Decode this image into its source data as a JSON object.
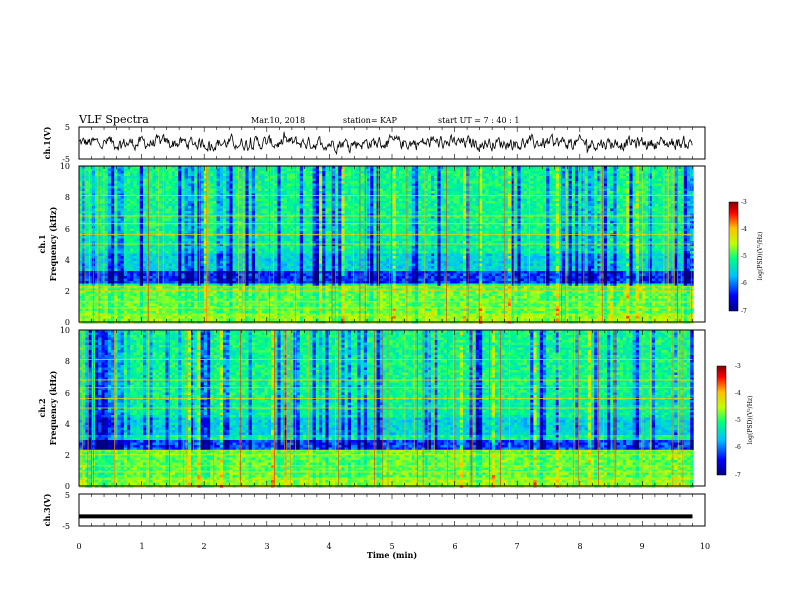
{
  "header": {
    "title": "VLF Spectra",
    "date": "Mar.10, 2018",
    "station": "station= KAP",
    "start_ut": "start  UT  =   7 : 40 : 1"
  },
  "colors": {
    "waveform": "#000000",
    "colormap": [
      "#000080",
      "#0000ff",
      "#00c0ff",
      "#00ff80",
      "#c0ff00",
      "#ffc000",
      "#ff0000",
      "#800000"
    ]
  },
  "chart_data": [
    {
      "type": "line",
      "ylabel": "ch.1(V)",
      "ylim": [
        -5,
        5
      ],
      "yticks": [
        "5",
        "-5"
      ],
      "xlim": [
        0,
        10
      ],
      "series": [
        {
          "description": "noisy waveform fluctuating between about -2.5 and 2.5 V",
          "x_range": [
            0,
            9.8
          ]
        }
      ]
    },
    {
      "type": "heatmap",
      "ylabel": "ch.1",
      "ylabel2": "Frequency  (kHz)",
      "ylim": [
        0,
        10
      ],
      "yticks": [
        "0",
        "2",
        "4",
        "6",
        "8",
        "10"
      ],
      "xlim": [
        0,
        10
      ],
      "x_range": [
        0,
        9.8
      ],
      "colorbar": {
        "label": "log(PSD)(V²/Hz)",
        "range": [
          -7,
          -3
        ],
        "ticks": [
          "-3",
          "-4",
          "-5",
          "-6",
          "-7"
        ]
      }
    },
    {
      "type": "heatmap",
      "ylabel": "ch.2",
      "ylabel2": "Frequency  (kHz)",
      "ylim": [
        0,
        10
      ],
      "yticks": [
        "0",
        "2",
        "4",
        "6",
        "8",
        "10"
      ],
      "xlim": [
        0,
        10
      ],
      "x_range": [
        0,
        9.8
      ],
      "colorbar": {
        "label": "log(PSD)(V²/Hz)",
        "range": [
          -7,
          -3
        ],
        "ticks": [
          "-3",
          "-4",
          "-5",
          "-6",
          "-7"
        ]
      }
    },
    {
      "type": "line",
      "ylabel": "ch.3(V)",
      "ylim": [
        -5,
        5
      ],
      "yticks": [
        "5",
        "-5"
      ],
      "xlim": [
        0,
        10
      ],
      "xlabel": "Time  (min)",
      "xticks": [
        "0",
        "1",
        "2",
        "3",
        "4",
        "5",
        "6",
        "7",
        "8",
        "9",
        "10"
      ],
      "series": [
        {
          "description": "thick flat line near -2 V",
          "value": -2,
          "x_range": [
            0,
            9.8
          ]
        }
      ]
    }
  ]
}
